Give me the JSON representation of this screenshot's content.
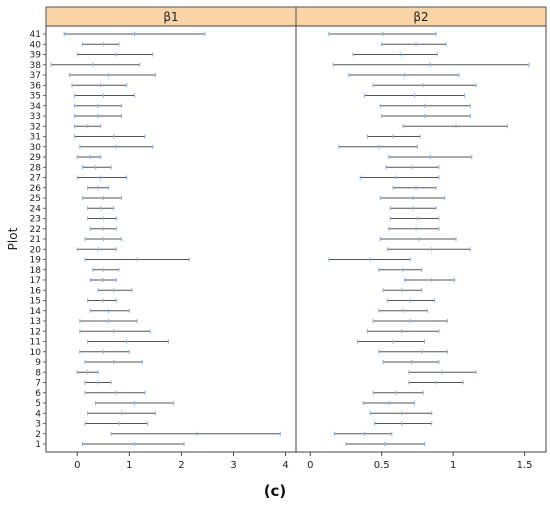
{
  "caption": "(c)",
  "chart_data": [
    {
      "type": "interval",
      "panel_title": "β1",
      "ylabel": "Plot",
      "xlabel": "",
      "xlim": [
        -0.6,
        4.2
      ],
      "xticks": [
        0,
        1,
        2,
        3,
        4
      ],
      "xtick_labels": [
        "0",
        "1",
        "2",
        "3",
        "4"
      ],
      "categories": [
        "1",
        "2",
        "3",
        "4",
        "5",
        "6",
        "7",
        "8",
        "9",
        "10",
        "11",
        "12",
        "13",
        "14",
        "15",
        "16",
        "17",
        "18",
        "19",
        "20",
        "21",
        "22",
        "23",
        "24",
        "25",
        "26",
        "27",
        "28",
        "29",
        "30",
        "31",
        "32",
        "33",
        "34",
        "35",
        "36",
        "37",
        "38",
        "39",
        "40",
        "41"
      ],
      "low": [
        0.1,
        0.65,
        0.15,
        0.2,
        0.35,
        0.15,
        0.15,
        0.0,
        0.15,
        0.05,
        0.2,
        0.05,
        0.05,
        0.25,
        0.2,
        0.4,
        0.25,
        0.3,
        0.15,
        0.0,
        0.15,
        0.25,
        0.2,
        0.2,
        0.1,
        0.2,
        0.0,
        0.1,
        0.0,
        0.05,
        -0.05,
        -0.05,
        -0.05,
        -0.05,
        -0.05,
        -0.1,
        -0.15,
        -0.5,
        0.0,
        0.1,
        -0.25
      ],
      "mid": [
        1.1,
        2.3,
        0.8,
        0.85,
        1.1,
        0.75,
        0.4,
        0.2,
        0.7,
        0.5,
        0.95,
        0.7,
        0.6,
        0.6,
        0.5,
        0.7,
        0.5,
        0.5,
        1.15,
        0.4,
        0.5,
        0.5,
        0.5,
        0.45,
        0.5,
        0.4,
        0.45,
        0.35,
        0.25,
        0.75,
        0.7,
        0.2,
        0.4,
        0.4,
        0.5,
        0.45,
        0.6,
        0.3,
        0.75,
        0.5,
        1.1
      ],
      "high": [
        2.05,
        3.9,
        1.35,
        1.5,
        1.85,
        1.3,
        0.65,
        0.4,
        1.25,
        1.0,
        1.75,
        1.4,
        1.15,
        1.0,
        0.75,
        1.05,
        0.75,
        0.8,
        2.15,
        0.75,
        0.85,
        0.75,
        0.75,
        0.7,
        0.85,
        0.6,
        0.95,
        0.65,
        0.45,
        1.45,
        1.3,
        0.45,
        0.85,
        0.85,
        1.1,
        0.95,
        1.5,
        1.2,
        1.45,
        0.8,
        2.45
      ]
    },
    {
      "type": "interval",
      "panel_title": "β2",
      "xlabel": "",
      "xlim": [
        -0.1,
        1.65
      ],
      "xticks": [
        0,
        0.5,
        1,
        1.5
      ],
      "xtick_labels": [
        "0",
        "0.5",
        "1",
        "1.5"
      ],
      "categories": [
        "1",
        "2",
        "3",
        "4",
        "5",
        "6",
        "7",
        "8",
        "9",
        "10",
        "11",
        "12",
        "13",
        "14",
        "15",
        "16",
        "17",
        "18",
        "19",
        "20",
        "21",
        "22",
        "23",
        "24",
        "25",
        "26",
        "27",
        "28",
        "29",
        "30",
        "31",
        "32",
        "33",
        "34",
        "35",
        "36",
        "37",
        "38",
        "39",
        "40",
        "41"
      ],
      "low": [
        0.25,
        0.17,
        0.45,
        0.42,
        0.37,
        0.44,
        0.69,
        0.69,
        0.51,
        0.48,
        0.33,
        0.4,
        0.44,
        0.48,
        0.54,
        0.51,
        0.66,
        0.48,
        0.13,
        0.54,
        0.49,
        0.55,
        0.56,
        0.56,
        0.49,
        0.58,
        0.35,
        0.53,
        0.55,
        0.2,
        0.4,
        0.65,
        0.5,
        0.49,
        0.38,
        0.44,
        0.27,
        0.16,
        0.3,
        0.5,
        0.13
      ],
      "mid": [
        0.52,
        0.38,
        0.64,
        0.64,
        0.55,
        0.6,
        0.88,
        0.92,
        0.71,
        0.78,
        0.58,
        0.64,
        0.7,
        0.65,
        0.7,
        0.64,
        0.85,
        0.65,
        0.42,
        0.85,
        0.76,
        0.74,
        0.75,
        0.72,
        0.72,
        0.74,
        0.6,
        0.71,
        0.84,
        0.48,
        0.58,
        1.02,
        0.8,
        0.8,
        0.73,
        0.79,
        0.66,
        0.84,
        0.63,
        0.74,
        0.51
      ],
      "high": [
        0.8,
        0.57,
        0.85,
        0.85,
        0.73,
        0.79,
        1.07,
        1.16,
        0.9,
        0.96,
        0.8,
        0.9,
        0.96,
        0.82,
        0.87,
        0.78,
        1.01,
        0.78,
        0.7,
        1.12,
        1.02,
        0.9,
        0.9,
        0.88,
        0.94,
        0.88,
        0.9,
        0.9,
        1.13,
        0.75,
        0.77,
        1.38,
        1.12,
        1.12,
        1.08,
        1.16,
        1.04,
        1.53,
        0.89,
        0.95,
        0.88
      ]
    }
  ],
  "colors": {
    "strip_fill": "#fbd4a6",
    "strip_border": "#555555",
    "interval_line": "#555555",
    "mark": "#8fb8e8",
    "panel_border": "#444444",
    "text": "#222222"
  }
}
